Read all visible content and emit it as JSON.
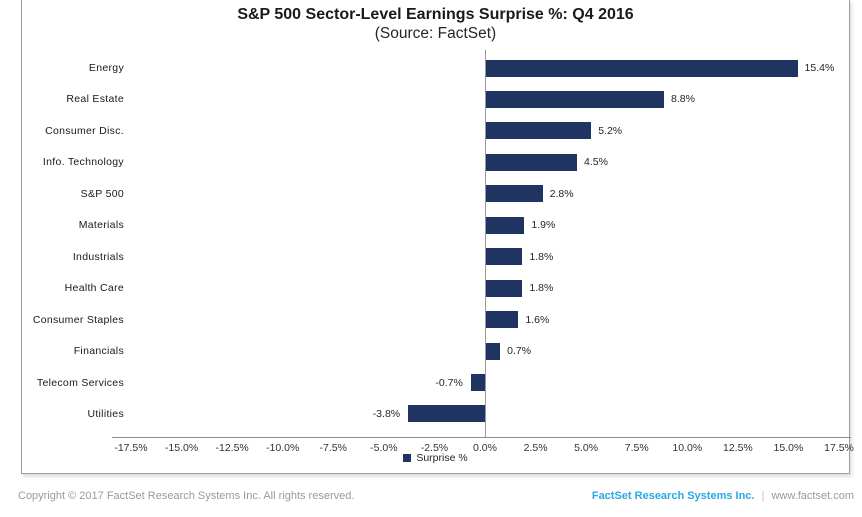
{
  "chart_data": {
    "type": "bar",
    "orientation": "horizontal",
    "title": "S&P 500 Sector-Level Earnings Surprise %: Q4 2016",
    "subtitle": "(Source: FactSet)",
    "categories": [
      "Energy",
      "Real Estate",
      "Consumer Disc.",
      "Info. Technology",
      "S&P 500",
      "Materials",
      "Industrials",
      "Health Care",
      "Consumer Staples",
      "Financials",
      "Telecom Services",
      "Utilities"
    ],
    "values": [
      15.4,
      8.8,
      5.2,
      4.5,
      2.8,
      1.9,
      1.8,
      1.8,
      1.6,
      0.7,
      -0.7,
      -3.8
    ],
    "value_labels": [
      "15.4%",
      "8.8%",
      "5.2%",
      "4.5%",
      "2.8%",
      "1.9%",
      "1.8%",
      "1.8%",
      "1.6%",
      "0.7%",
      "-0.7%",
      "-3.8%"
    ],
    "xlim": [
      -17.5,
      17.5
    ],
    "x_tick_step": 2.5,
    "x_tick_labels": [
      "-17.5%",
      "-15.0%",
      "-12.5%",
      "-10.0%",
      "-7.5%",
      "-5.0%",
      "-2.5%",
      "0.0%",
      "2.5%",
      "5.0%",
      "7.5%",
      "10.0%",
      "12.5%",
      "15.0%",
      "17.5%"
    ],
    "grid": false,
    "legend": {
      "label": "Surprise %",
      "position": "bottom-center"
    },
    "colors": {
      "bar": "#1f3460",
      "axis": "#8c8c8c",
      "text": "#262626"
    }
  },
  "footer": {
    "copyright": "Copyright © 2017 FactSet Research Systems Inc. All rights reserved.",
    "link": "FactSet Research Systems Inc.",
    "separator": "|",
    "website": "www.factset.com",
    "link_color": "#29a9e1"
  }
}
